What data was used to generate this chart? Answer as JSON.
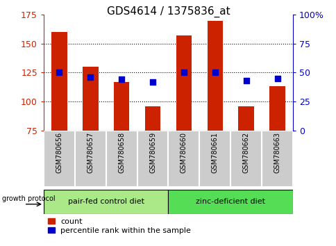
{
  "title": "GDS4614 / 1375836_at",
  "samples": [
    "GSM780656",
    "GSM780657",
    "GSM780658",
    "GSM780659",
    "GSM780660",
    "GSM780661",
    "GSM780662",
    "GSM780663"
  ],
  "counts": [
    160,
    130,
    117,
    96,
    157,
    170,
    96,
    113
  ],
  "percentiles": [
    50,
    46,
    44,
    42,
    50,
    50,
    43,
    45
  ],
  "ylim_left": [
    75,
    175
  ],
  "ylim_right": [
    0,
    100
  ],
  "yticks_left": [
    75,
    100,
    125,
    150,
    175
  ],
  "yticks_right": [
    0,
    25,
    50,
    75,
    100
  ],
  "ytick_labels_right": [
    "0",
    "25",
    "50",
    "75",
    "100%"
  ],
  "hlines": [
    100,
    125,
    150
  ],
  "bar_color": "#cc2200",
  "dot_color": "#0000cc",
  "group1_label": "pair-fed control diet",
  "group2_label": "zinc-deficient diet",
  "group1_color": "#aae888",
  "group2_color": "#55dd55",
  "growth_protocol_label": "growth protocol",
  "legend_count": "count",
  "legend_percentile": "percentile rank within the sample",
  "bar_width": 0.5,
  "dot_size": 35,
  "label_box_color": "#cccccc",
  "fig_width": 4.85,
  "fig_height": 3.54,
  "fig_dpi": 100
}
